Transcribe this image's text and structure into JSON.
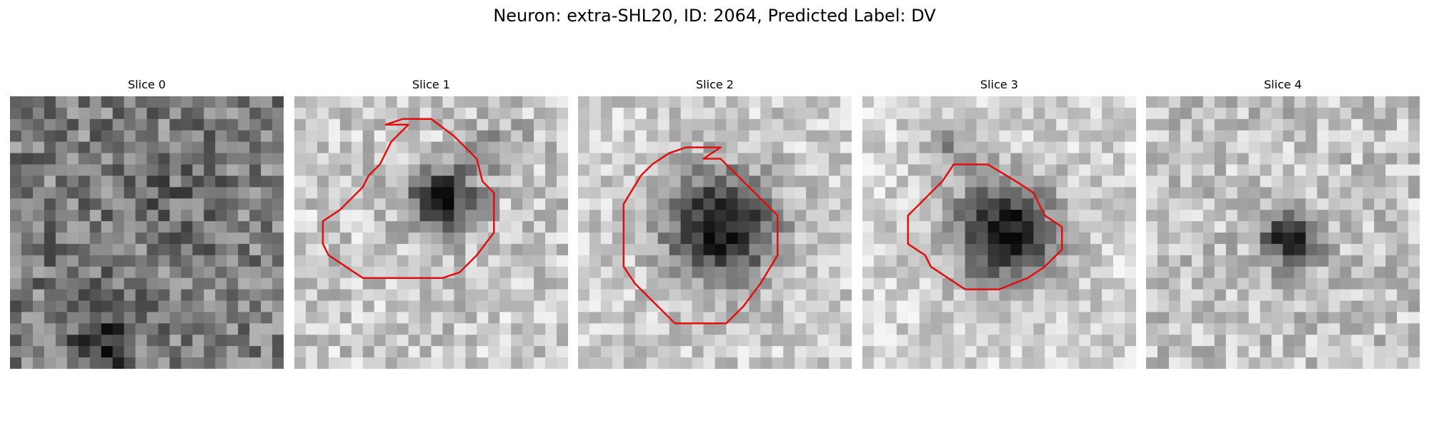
{
  "figure": {
    "title": "Neuron: extra-SHL20, ID: 2064, Predicted Label: DV"
  },
  "panels": [
    {
      "label": "Slice 0",
      "has_contour": false,
      "outline_color": "#e01010"
    },
    {
      "label": "Slice 1",
      "has_contour": true,
      "outline_color": "#e01010"
    },
    {
      "label": "Slice 2",
      "has_contour": true,
      "outline_color": "#e01010"
    },
    {
      "label": "Slice 3",
      "has_contour": true,
      "outline_color": "#e01010"
    },
    {
      "label": "Slice 4",
      "has_contour": false,
      "outline_color": "#e01010"
    }
  ]
}
